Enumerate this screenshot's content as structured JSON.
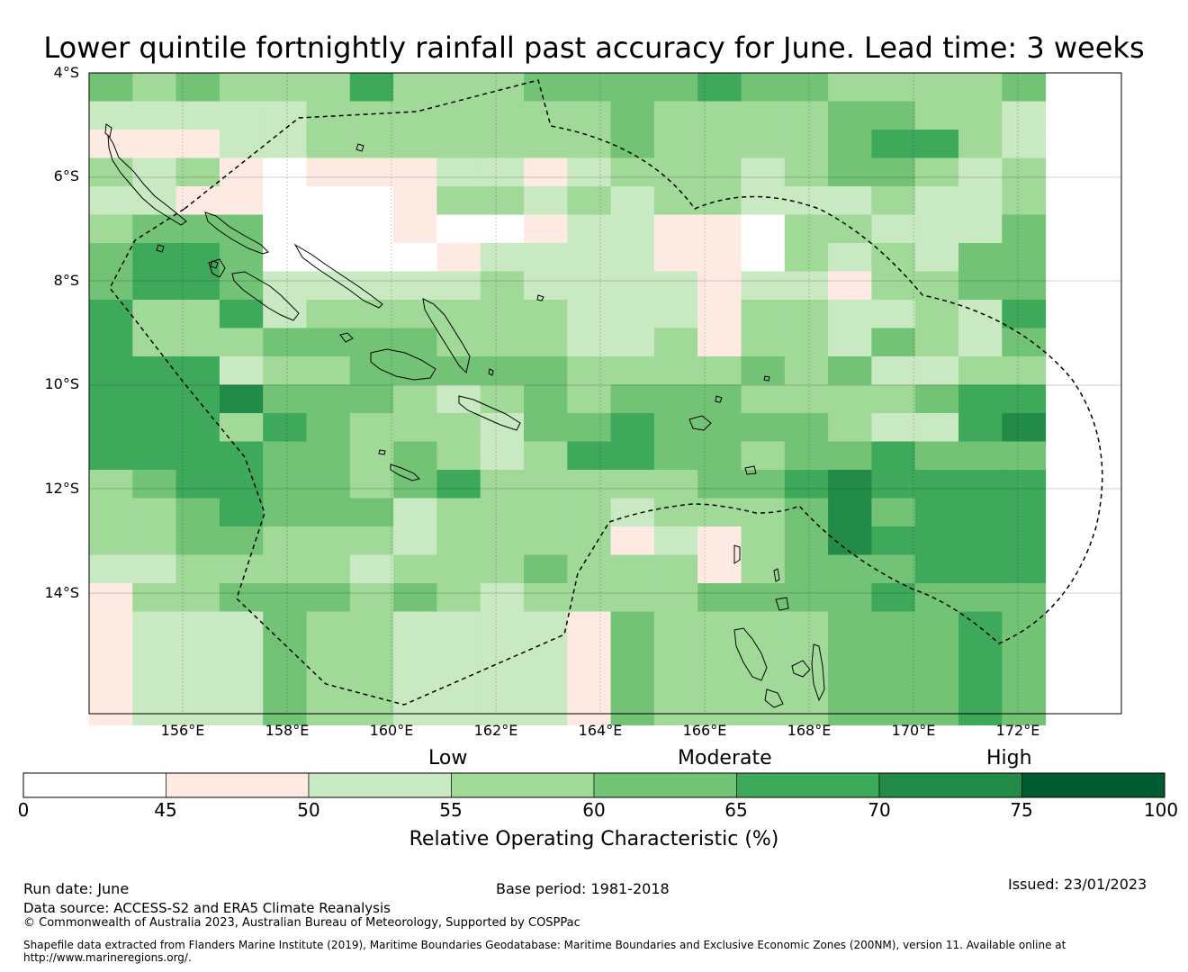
{
  "title": "Lower quintile fortnightly rainfall past accuracy for June. Lead time: 3 weeks",
  "map": {
    "lat_labels": [
      "4°S",
      "6°S",
      "8°S",
      "10°S",
      "12°S",
      "14°S"
    ],
    "lon_labels": [
      "156°E",
      "158°E",
      "160°E",
      "162°E",
      "164°E",
      "166°E",
      "168°E",
      "170°E",
      "172°E"
    ],
    "grid_rows": [
      "4343335333444454433334",
      "2222233333334333344332",
      "1112233333334333345532",
      "3231011122123332344323",
      "2211000133232332223223",
      "3444000100122110332224",
      "4554000012222110323244",
      "4554222223222212213344",
      "5335233333322213322325",
      "5333444433322313324324",
      "5552334444433334342233",
      "5556444323434443333455",
      "5553543332445444432256",
      "5555443432355443445444",
      "3455443453333344565555",
      "3345444233332333464555",
      "3344333233331213465555",
      "2233332333433313444555",
      "1334443432333344445444",
      "1222433222214333344454",
      "1222433222214333344454",
      "1222433222214333344454",
      "1222433222214333344454"
    ],
    "land_lat_note": ""
  },
  "colorbar": {
    "category_labels": [
      "Low",
      "Moderate",
      "High"
    ],
    "ticks": [
      "0",
      "45",
      "50",
      "55",
      "60",
      "65",
      "70",
      "75",
      "100"
    ],
    "colors": [
      "#ffffff",
      "#fdebe3",
      "#c8e9c1",
      "#a1d999",
      "#72c375",
      "#3ea95b",
      "#218b47",
      "#005a32"
    ],
    "title": "Relative Operating Characteristic (%)"
  },
  "footer": {
    "run_date": "Run date: June",
    "base_period": "Base period: 1981-2018",
    "issued": "Issued: 23/01/2023",
    "data_source": "Data source: ACCESS-S2 and ERA5 Climate Reanalysis",
    "copyright": "© Commonwealth of Australia 2023, Australian Bureau of Meteorology, Supported by COSPPac",
    "shapefile": "Shapefile data extracted from Flanders Marine Institute (2019), Maritime Boundaries Geodatabase: Maritime Boundaries and Exclusive Economic Zones (200NM), version 11. Available online at http://www.marineregions.org/."
  }
}
